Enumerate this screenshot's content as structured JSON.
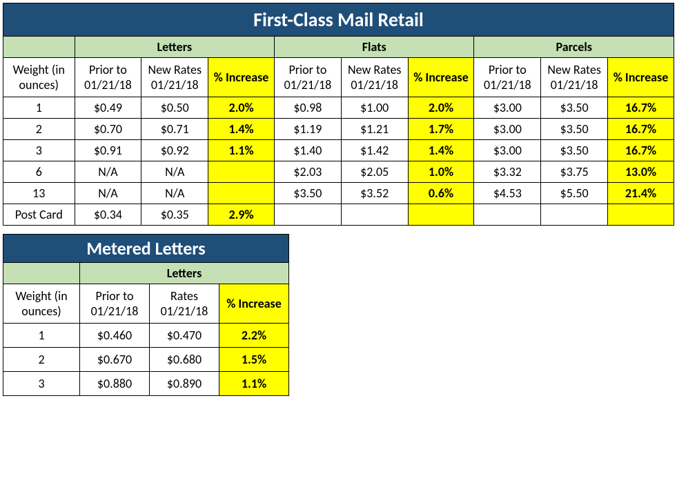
{
  "colors": {
    "title_bg": "#1f4e79",
    "title_text": "#ffffff",
    "category_bg": "#c5e0b4",
    "highlight_bg": "#ffff00",
    "border": "#000000",
    "text": "#000000"
  },
  "fonts": {
    "family": "Calibri, Arial, sans-serif",
    "title_size_pt": 21,
    "header_size_pt": 14,
    "body_size_pt": 14
  },
  "table1": {
    "title": "First-Class Mail Retail",
    "categories": [
      "Letters",
      "Flats",
      "Parcels"
    ],
    "weight_header": "Weight (in ounces)",
    "col_headers": {
      "prior": "Prior to 01/21/18",
      "new": "New Rates 01/21/18",
      "increase": "% Increase"
    },
    "rows": [
      {
        "weight": "1",
        "letters": {
          "prior": "$0.49",
          "new": "$0.50",
          "increase": "2.0%"
        },
        "flats": {
          "prior": "$0.98",
          "new": "$1.00",
          "increase": "2.0%"
        },
        "parcels": {
          "prior": "$3.00",
          "new": "$3.50",
          "increase": "16.7%"
        }
      },
      {
        "weight": "2",
        "letters": {
          "prior": "$0.70",
          "new": "$0.71",
          "increase": "1.4%"
        },
        "flats": {
          "prior": "$1.19",
          "new": "$1.21",
          "increase": "1.7%"
        },
        "parcels": {
          "prior": "$3.00",
          "new": "$3.50",
          "increase": "16.7%"
        }
      },
      {
        "weight": "3",
        "letters": {
          "prior": "$0.91",
          "new": "$0.92",
          "increase": "1.1%"
        },
        "flats": {
          "prior": "$1.40",
          "new": "$1.42",
          "increase": "1.4%"
        },
        "parcels": {
          "prior": "$3.00",
          "new": "$3.50",
          "increase": "16.7%"
        }
      },
      {
        "weight": "6",
        "letters": {
          "prior": "N/A",
          "new": "N/A",
          "increase": ""
        },
        "flats": {
          "prior": "$2.03",
          "new": "$2.05",
          "increase": "1.0%"
        },
        "parcels": {
          "prior": "$3.32",
          "new": "$3.75",
          "increase": "13.0%"
        }
      },
      {
        "weight": "13",
        "letters": {
          "prior": "N/A",
          "new": "N/A",
          "increase": ""
        },
        "flats": {
          "prior": "$3.50",
          "new": "$3.52",
          "increase": "0.6%"
        },
        "parcels": {
          "prior": "$4.53",
          "new": "$5.50",
          "increase": "21.4%"
        }
      },
      {
        "weight": "Post Card",
        "letters": {
          "prior": "$0.34",
          "new": "$0.35",
          "increase": "2.9%"
        },
        "flats": {
          "prior": "",
          "new": "",
          "increase": ""
        },
        "parcels": {
          "prior": "",
          "new": "",
          "increase": ""
        }
      }
    ]
  },
  "table2": {
    "title": "Metered Letters",
    "category": "Letters",
    "weight_header": "Weight (in ounces)",
    "col_headers": {
      "prior": "Prior to 01/21/18",
      "new": "Rates 01/21/18",
      "increase": "% Increase"
    },
    "rows": [
      {
        "weight": "1",
        "prior": "$0.460",
        "new": "$0.470",
        "increase": "2.2%"
      },
      {
        "weight": "2",
        "prior": "$0.670",
        "new": "$0.680",
        "increase": "1.5%"
      },
      {
        "weight": "3",
        "prior": "$0.880",
        "new": "$0.890",
        "increase": "1.1%"
      }
    ]
  }
}
